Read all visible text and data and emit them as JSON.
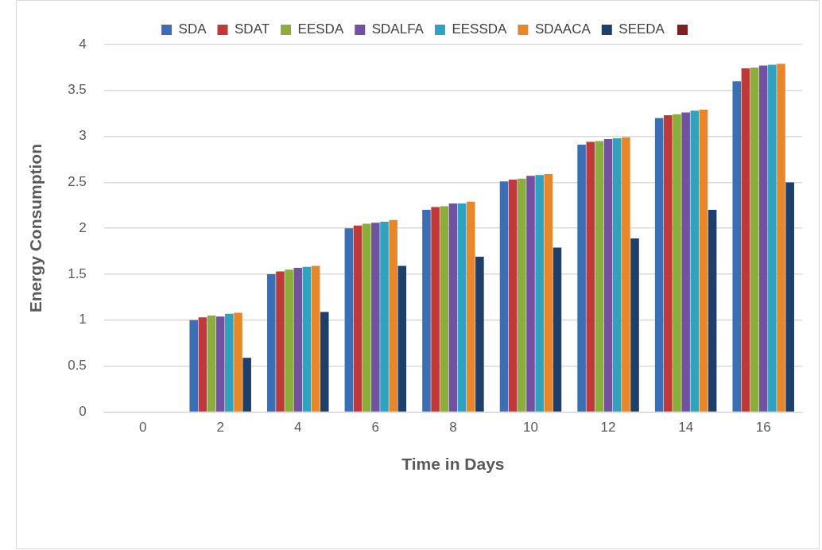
{
  "chart_data": {
    "type": "bar",
    "xlabel": "Time in Days",
    "ylabel": "Energy Consumption",
    "categories": [
      "0",
      "2",
      "4",
      "6",
      "8",
      "10",
      "12",
      "14",
      "16"
    ],
    "series": [
      {
        "name": "SDA",
        "color": "#3a6fb5",
        "values": [
          0,
          1.0,
          1.5,
          2.0,
          2.2,
          2.51,
          2.91,
          3.2,
          3.6
        ]
      },
      {
        "name": "SDAT",
        "color": "#c0393a",
        "values": [
          0,
          1.03,
          1.53,
          2.03,
          2.23,
          2.53,
          2.94,
          3.23,
          3.74
        ]
      },
      {
        "name": "EESDA",
        "color": "#8aad3b",
        "values": [
          0,
          1.05,
          1.55,
          2.05,
          2.24,
          2.54,
          2.95,
          3.24,
          3.75
        ]
      },
      {
        "name": "SDALFA",
        "color": "#7152a0",
        "values": [
          0,
          1.04,
          1.57,
          2.06,
          2.27,
          2.57,
          2.97,
          3.26,
          3.77
        ]
      },
      {
        "name": "EESSDA",
        "color": "#2fa2c0",
        "values": [
          0,
          1.07,
          1.58,
          2.07,
          2.27,
          2.58,
          2.98,
          3.28,
          3.78
        ]
      },
      {
        "name": "SDAACA",
        "color": "#e8872a",
        "values": [
          0,
          1.08,
          1.59,
          2.09,
          2.29,
          2.59,
          2.99,
          3.29,
          3.79
        ]
      },
      {
        "name": "SEEDA",
        "color": "#1e3f6a",
        "values": [
          0,
          0.59,
          1.09,
          1.59,
          1.69,
          1.79,
          1.89,
          2.2,
          2.5
        ]
      }
    ],
    "ylim": [
      0,
      4
    ],
    "yticks": [
      0,
      0.5,
      1,
      1.5,
      2,
      2.5,
      3,
      3.5,
      4
    ],
    "grid": "y",
    "legend": "top"
  }
}
